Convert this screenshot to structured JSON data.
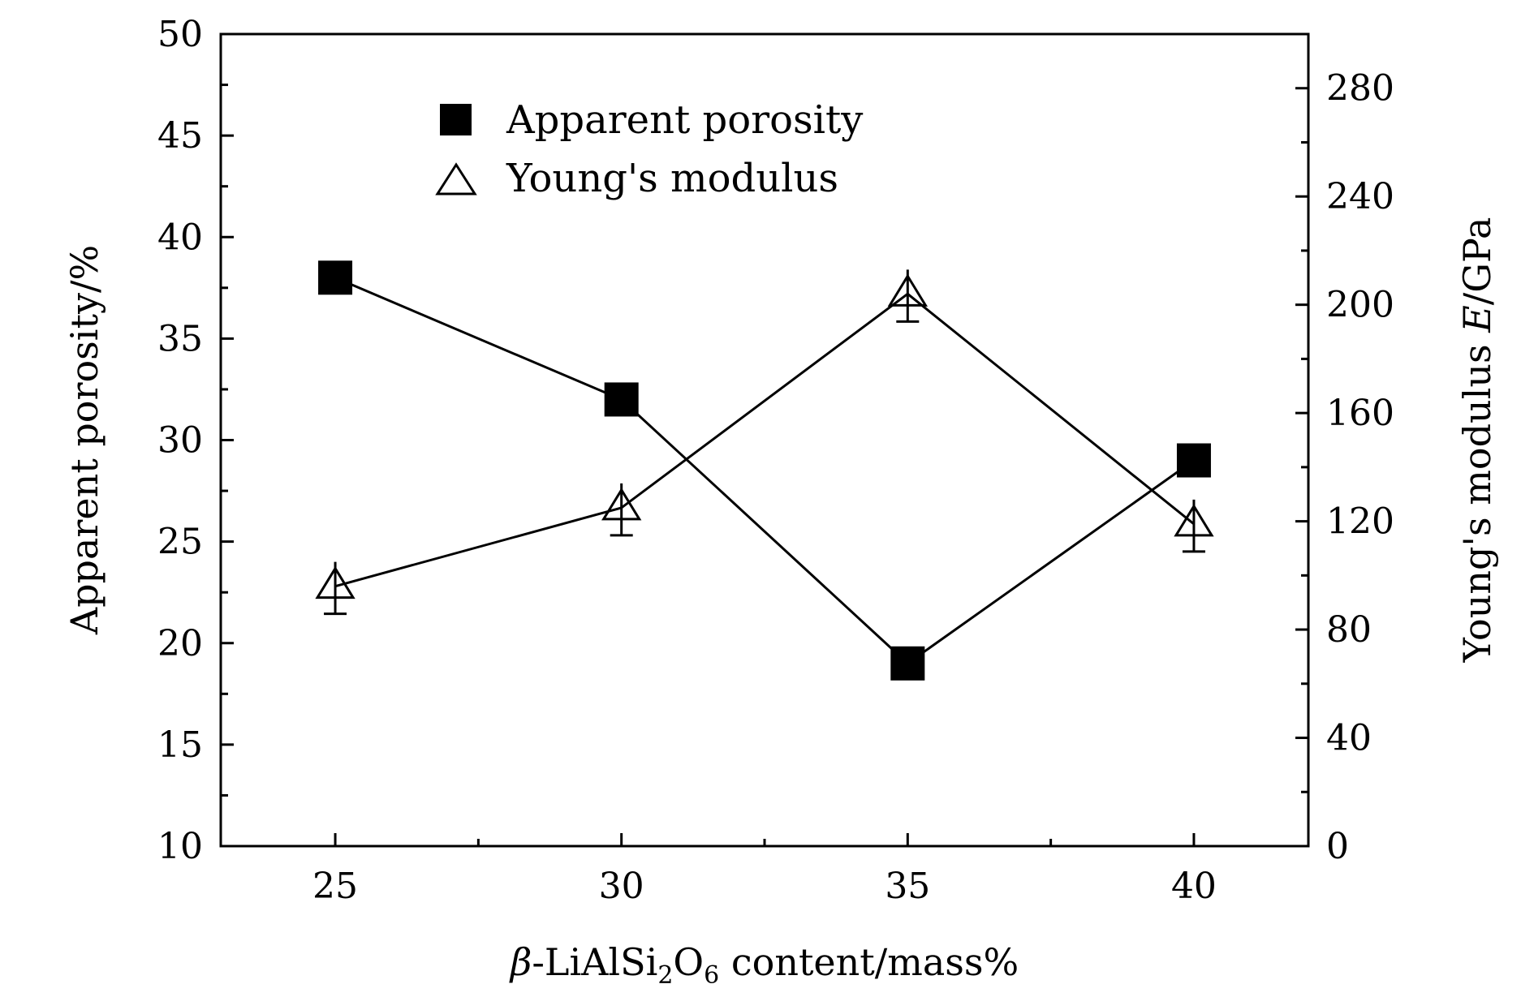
{
  "chart_data": {
    "type": "line",
    "xlabel_prefix": "β",
    "xlabel_main": "-LiAlSi",
    "xlabel_sub1": "2",
    "xlabel_o": "O",
    "xlabel_sub2": "6",
    "xlabel_suffix": " content/mass%",
    "ylabel_left": "Apparent porosity/%",
    "ylabel_right_main": "Young's modulus ",
    "ylabel_right_italic": "E",
    "ylabel_right_unit": "/GPa",
    "x": [
      25,
      30,
      35,
      40
    ],
    "xlim": [
      23,
      42
    ],
    "xticks": [
      25,
      30,
      35,
      40
    ],
    "xticks_minor": [
      27.5,
      32.5,
      37.5
    ],
    "ylim_left": [
      10,
      50
    ],
    "yticks_left": [
      10,
      15,
      20,
      25,
      30,
      35,
      40,
      45,
      50
    ],
    "ylim_right": [
      0,
      300
    ],
    "yticks_right": [
      0,
      40,
      80,
      120,
      160,
      200,
      240,
      280
    ],
    "legend_position": "top-left",
    "series": [
      {
        "name": "Apparent porosity",
        "axis": "left",
        "marker": "filled-square",
        "values": [
          38,
          32,
          19,
          29
        ]
      },
      {
        "name": "Young's modulus",
        "axis": "right",
        "marker": "open-triangle-with-errorbar",
        "values": [
          96,
          125,
          204,
          119
        ]
      }
    ]
  }
}
